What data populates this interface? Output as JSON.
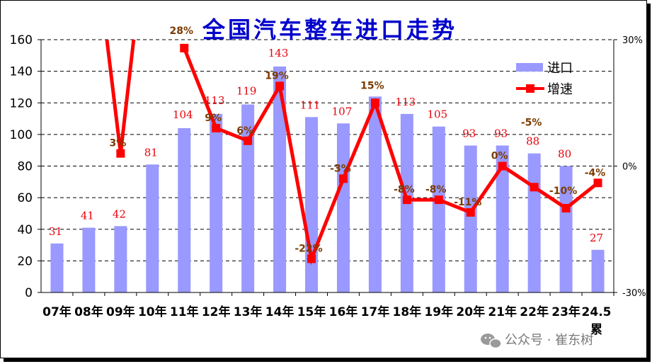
{
  "chart_data": {
    "type": "bar+line",
    "title": "全国汽车整车进口走势",
    "categories": [
      "07年",
      "08年",
      "09年",
      "10年",
      "11年",
      "12年",
      "13年",
      "14年",
      "15年",
      "16年",
      "17年",
      "18年",
      "19年",
      "20年",
      "21年",
      "22年",
      "23年",
      "24.5累"
    ],
    "series": [
      {
        "name": "进口",
        "type": "bar",
        "axis": "left",
        "color": "#9999ff",
        "values": [
          31,
          41,
          42,
          81,
          104,
          113,
          119,
          143,
          111,
          107,
          124,
          113,
          105,
          93,
          93,
          88,
          80,
          27
        ]
      },
      {
        "name": "增速",
        "type": "line",
        "axis": "right",
        "color": "#ff0000",
        "values": [
          null,
          null,
          3,
          null,
          28,
          9,
          6,
          19,
          -22,
          -3,
          15,
          -8,
          -8,
          -11,
          0,
          -5,
          -10,
          -4
        ]
      }
    ],
    "bar_labels": [
      "31",
      "41",
      "42",
      "81",
      "104",
      "113",
      "119",
      "143",
      "111",
      "107",
      "",
      "113",
      "105",
      "93",
      "93",
      "88",
      "80",
      "27"
    ],
    "growth_labels": [
      "",
      "",
      "3%",
      "",
      "28%",
      "9%",
      "6%",
      "19%",
      "-22%",
      "-3%",
      "15%",
      "-8%",
      "-8%",
      "-11%",
      "0%",
      "-5%",
      "-10%",
      "-4%"
    ],
    "y_left": {
      "min": 0,
      "max": 160,
      "step": 20,
      "ticks": [
        "0",
        "20",
        "40",
        "60",
        "80",
        "100",
        "120",
        "140",
        "160"
      ]
    },
    "y_right": {
      "min": -30,
      "max": 30,
      "ticks": [
        "-30%",
        "0%",
        "30%"
      ]
    },
    "grid": "horizontal-dashed",
    "legend_position": "top-right"
  },
  "legend": {
    "import": "进口",
    "growth": "增速"
  },
  "watermark": "公众号 · 崔东树"
}
